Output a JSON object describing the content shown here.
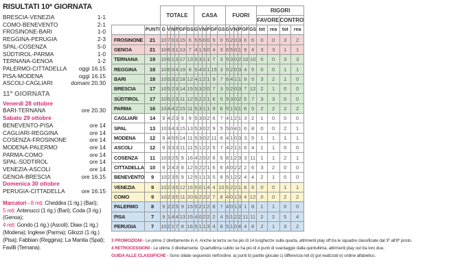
{
  "results": {
    "title": "RISULTATI 10ª GIORNATA",
    "matches": [
      {
        "match": "BRESCIA-VENEZIA",
        "score": "1-1"
      },
      {
        "match": "COMO-BENEVENTO",
        "score": "2-1"
      },
      {
        "match": "FROSINONE-BARI",
        "score": "1-0"
      },
      {
        "match": "REGGINA-PERUGIA",
        "score": "2-3"
      },
      {
        "match": "SPAL-COSENZA",
        "score": "5-0"
      },
      {
        "match": "SÜDTIROL-PARMA",
        "score": "1-0"
      },
      {
        "match": "TERNANA-GENOA",
        "score": "1-2"
      },
      {
        "match": "PALERMO-CITTADELLA",
        "score": "oggi 16.15"
      },
      {
        "match": "PISA-MODENA",
        "score": "oggi 16.15"
      },
      {
        "match": "ASCOLI-CAGLIARI",
        "score": "domani 20.30"
      }
    ]
  },
  "next": {
    "title": "11ª GIORNATA",
    "days": [
      {
        "day": "Venerdì 28 ottobre",
        "matches": [
          {
            "match": "BARI-TERNANA",
            "time": "ore 20.30"
          }
        ]
      },
      {
        "day": "Sabato 29 ottobre",
        "matches": [
          {
            "match": "BENEVENTO-PISA",
            "time": "ore 14"
          },
          {
            "match": "CAGLIARI-REGGINA",
            "time": "ore 14"
          },
          {
            "match": "COSENZA-FROSINONE",
            "time": "ore 14"
          },
          {
            "match": "MODENA-PALERMO",
            "time": "ore 14"
          },
          {
            "match": "PARMA-COMO",
            "time": "ore 14"
          },
          {
            "match": "SPAL-SÜDTIROL",
            "time": "ore 14"
          },
          {
            "match": "VENEZIA-ASCOLI",
            "time": "ore 14"
          },
          {
            "match": "GENOA-BRESCIA",
            "time": "ore 16.15"
          }
        ]
      },
      {
        "day": "Domenica 30 ottobre",
        "matches": [
          {
            "match": "PERUGIA-CITTADELLA",
            "time": "ore 16.15"
          }
        ]
      }
    ]
  },
  "scorers": {
    "label": "Marcatori - ",
    "groups": [
      {
        "goals": "8 reti: ",
        "text": "Cheddira (1 rig.) (Bari);"
      },
      {
        "goals": "5 reti: ",
        "text": "Antenucci (1 rig.) (Bari); Coda (3 rig.) (Genoa);"
      },
      {
        "goals": "4 reti: ",
        "text": "Gondo (1 rig.) (Ascoli); Diaw (1 rig.) (Modena); Inglese (Parma); Gliozzi (1 rig.) (Pisa); Fabbian (Reggina); La Mantia (Spal); Favilli (Ternana)."
      }
    ]
  },
  "table": {
    "groups": {
      "totale": "TOTALE",
      "casa": "CASA",
      "fuori": "FUORI",
      "rigori": "RIGORI",
      "favore": "FAVORE",
      "contro": "CONTRO"
    },
    "columns": [
      "PUNTI",
      "G",
      "V",
      "N",
      "P",
      "GF",
      "GS",
      "G",
      "V",
      "N",
      "P",
      "GF",
      "GS",
      "G",
      "V",
      "N",
      "P",
      "GF",
      "GS",
      "tot",
      "rea",
      "tot",
      "rea"
    ],
    "zone_colors": {
      "promo": "#f2d3d3",
      "playoff": "#d6e9d3",
      "none": "#ffffff",
      "playout": "#fbf4cf",
      "releg": "#cfe1f1"
    },
    "rows": [
      {
        "team": "FROSINONE",
        "zone": "promo",
        "v": [
          21,
          10,
          7,
          0,
          3,
          15,
          6,
          5,
          5,
          0,
          0,
          9,
          0,
          5,
          2,
          0,
          3,
          6,
          6,
          0,
          0,
          3,
          2
        ]
      },
      {
        "team": "GENOA",
        "zone": "promo",
        "v": [
          21,
          10,
          6,
          3,
          1,
          13,
          7,
          4,
          1,
          3,
          0,
          4,
          3,
          6,
          5,
          0,
          1,
          9,
          4,
          3,
          3,
          1,
          1
        ]
      },
      {
        "team": "TERNANA",
        "zone": "playoff",
        "v": [
          19,
          10,
          6,
          1,
          3,
          17,
          13,
          5,
          3,
          1,
          1,
          7,
          3,
          5,
          3,
          0,
          2,
          10,
          10,
          0,
          0,
          3,
          3
        ]
      },
      {
        "team": "REGGINA",
        "zone": "playoff",
        "v": [
          18,
          10,
          6,
          0,
          4,
          19,
          8,
          5,
          4,
          0,
          1,
          15,
          3,
          5,
          2,
          0,
          3,
          4,
          5,
          0,
          0,
          1,
          1
        ]
      },
      {
        "team": "BARI",
        "zone": "playoff",
        "v": [
          18,
          10,
          5,
          3,
          2,
          18,
          12,
          4,
          1,
          2,
          1,
          9,
          7,
          6,
          4,
          1,
          1,
          9,
          5,
          3,
          2,
          1,
          0
        ]
      },
      {
        "team": "BRESCIA",
        "zone": "playoff",
        "v": [
          17,
          10,
          5,
          2,
          3,
          14,
          15,
          5,
          3,
          2,
          0,
          7,
          3,
          5,
          2,
          0,
          3,
          7,
          12,
          2,
          1,
          0,
          0
        ]
      },
      {
        "team": "SÜDTIROL",
        "zone": "playoff",
        "v": [
          17,
          10,
          5,
          2,
          3,
          11,
          12,
          5,
          2,
          2,
          1,
          6,
          5,
          5,
          3,
          0,
          2,
          5,
          7,
          3,
          3,
          0,
          0
        ]
      },
      {
        "team": "PARMA",
        "zone": "playoff",
        "v": [
          16,
          10,
          4,
          4,
          2,
          15,
          11,
          5,
          3,
          1,
          1,
          9,
          6,
          5,
          1,
          3,
          1,
          6,
          5,
          2,
          2,
          2,
          2
        ]
      },
      {
        "team": "CAGLIARI",
        "zone": "none",
        "v": [
          14,
          9,
          4,
          2,
          3,
          9,
          9,
          5,
          3,
          0,
          2,
          6,
          7,
          4,
          1,
          2,
          1,
          3,
          2,
          1,
          0,
          0,
          0
        ]
      },
      {
        "team": "SPAL",
        "zone": "none",
        "v": [
          13,
          10,
          3,
          4,
          3,
          15,
          13,
          5,
          3,
          0,
          2,
          9,
          5,
          5,
          0,
          4,
          1,
          6,
          8,
          0,
          0,
          2,
          1
        ]
      },
      {
        "team": "MODENA",
        "zone": "none",
        "v": [
          12,
          9,
          4,
          0,
          5,
          14,
          11,
          5,
          3,
          0,
          2,
          11,
          6,
          4,
          1,
          0,
          3,
          3,
          5,
          1,
          1,
          1,
          1
        ]
      },
      {
        "team": "ASCOLI",
        "zone": "none",
        "v": [
          12,
          9,
          3,
          3,
          3,
          11,
          11,
          5,
          1,
          2,
          2,
          5,
          7,
          4,
          2,
          1,
          1,
          6,
          4,
          1,
          1,
          0,
          0
        ]
      },
      {
        "team": "COSENZA",
        "zone": "none",
        "v": [
          11,
          10,
          3,
          2,
          5,
          9,
          16,
          4,
          2,
          0,
          2,
          6,
          5,
          6,
          1,
          2,
          3,
          3,
          11,
          1,
          1,
          2,
          1
        ]
      },
      {
        "team": "CITTADELLA",
        "zone": "none",
        "v": [
          10,
          9,
          2,
          4,
          3,
          8,
          12,
          5,
          2,
          2,
          1,
          6,
          6,
          4,
          0,
          2,
          2,
          2,
          6,
          3,
          2,
          0,
          0
        ]
      },
      {
        "team": "BENEVENTO",
        "zone": "none",
        "v": [
          9,
          10,
          2,
          3,
          5,
          9,
          12,
          5,
          1,
          1,
          3,
          5,
          8,
          5,
          1,
          2,
          2,
          4,
          4,
          2,
          1,
          0,
          0
        ]
      },
      {
        "team": "VENEZIA",
        "zone": "playout",
        "v": [
          9,
          10,
          2,
          3,
          5,
          12,
          16,
          5,
          0,
          1,
          4,
          4,
          10,
          5,
          2,
          2,
          1,
          8,
          6,
          0,
          0,
          1,
          1
        ]
      },
      {
        "team": "COMO",
        "zone": "playout",
        "v": [
          9,
          10,
          2,
          3,
          5,
          11,
          20,
          6,
          2,
          2,
          2,
          7,
          8,
          4,
          0,
          1,
          3,
          4,
          12,
          0,
          0,
          2,
          2
        ]
      },
      {
        "team": "PALERMO",
        "zone": "releg",
        "v": [
          8,
          9,
          2,
          2,
          5,
          9,
          15,
          5,
          2,
          1,
          2,
          8,
          7,
          4,
          0,
          1,
          3,
          1,
          8,
          1,
          1,
          0,
          0
        ]
      },
      {
        "team": "PISA",
        "zone": "releg",
        "v": [
          7,
          9,
          1,
          4,
          4,
          13,
          15,
          4,
          0,
          2,
          2,
          2,
          4,
          5,
          1,
          2,
          2,
          11,
          11,
          2,
          2,
          5,
          4
        ]
      },
      {
        "team": "PERUGIA",
        "zone": "releg",
        "v": [
          7,
          10,
          2,
          1,
          7,
          8,
          16,
          5,
          1,
          1,
          3,
          4,
          8,
          5,
          1,
          0,
          4,
          4,
          8,
          2,
          1,
          3,
          2
        ]
      }
    ]
  },
  "notes": [
    {
      "label": "3 PROMOZIONI - ",
      "text": "Le prime 2 direttamente in A. Anche la terza se ha più di 14 lunghezze sulla quarta, altrimenti play off tra le squadre classificate dal 3º all'8º posto."
    },
    {
      "label": "4 RETROCESSIONI - ",
      "text": "Le ultime 3 direttamente. Quartultima subito se ha più di 4 punti di svantaggio dalla quintultima, altrimenti play out tra loro due."
    },
    {
      "label": "GUIDA ALLE CLASSIFICHE - ",
      "text": "Sono stilate seguendo nell'ordine: a) punti b) partite giocate c) differenza reti d) gol realizzati e) ordine alfabetico."
    }
  ],
  "accent": "#d3286f"
}
